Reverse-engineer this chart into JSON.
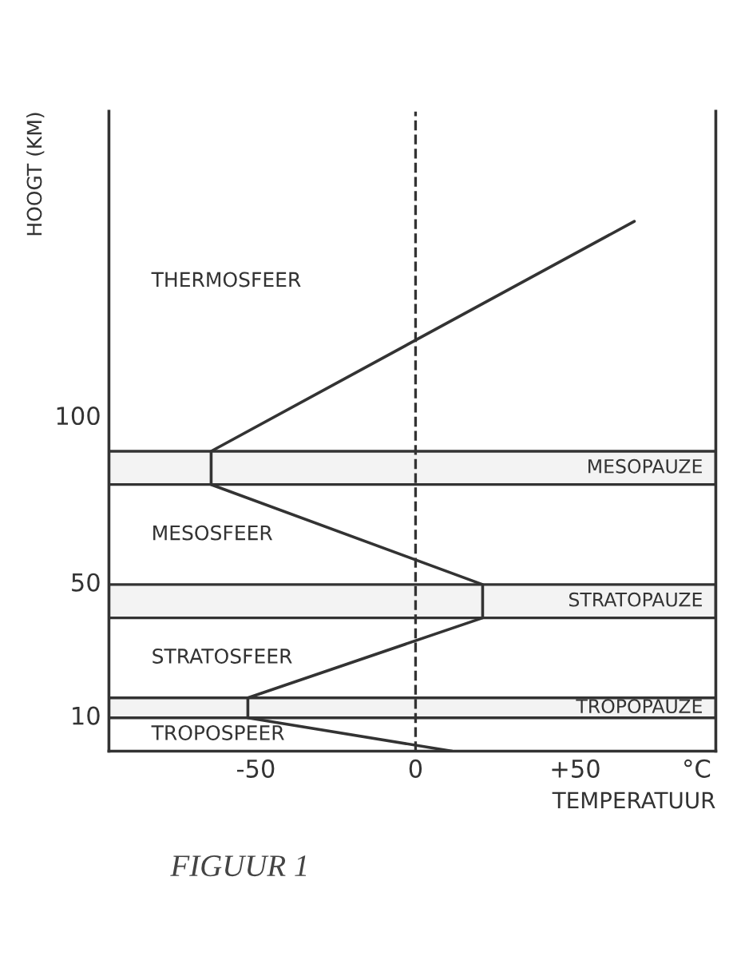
{
  "chart_data": {
    "type": "line",
    "xlabel": "TEMPERATUUR",
    "ylabel": "HOOGT (KM)",
    "series": [
      {
        "color": "#333333",
        "x": [
          68.5,
          -64,
          -64,
          21,
          21,
          -52.5,
          -52.5,
          11.5
        ],
        "values": [
          159,
          90,
          80,
          50,
          40,
          16,
          10,
          0
        ]
      }
    ],
    "xlim": [
      -96,
      94
    ],
    "ylim": [
      0,
      192
    ],
    "xticks": [
      -50,
      0,
      {
        "value": 50,
        "label": "+50"
      },
      {
        "value": 88,
        "label": "°C"
      }
    ],
    "yticks": [
      10,
      50,
      100
    ],
    "ref_lines": [
      {
        "axis": "x",
        "value": 0,
        "color": "#333333",
        "line_style": "dashed"
      }
    ],
    "bands": [
      {
        "axis": "y",
        "from": 80,
        "to": 90,
        "label": "MESOPAUZE",
        "color": "#333333"
      },
      {
        "axis": "y",
        "from": 40,
        "to": 50,
        "label": "STRATOPAUZE",
        "color": "#333333"
      },
      {
        "axis": "y",
        "from": 10,
        "to": 16,
        "label": "TROPOPAUZE",
        "color": "#333333"
      }
    ],
    "annotations": [
      "THERMOSFEER",
      "MESOSFEER",
      "STRATOSFEER",
      "TROPOSPEER",
      "FIGUUR 1"
    ],
    "grid": false,
    "legend": false,
    "marker": "none",
    "line_style": "solid"
  }
}
